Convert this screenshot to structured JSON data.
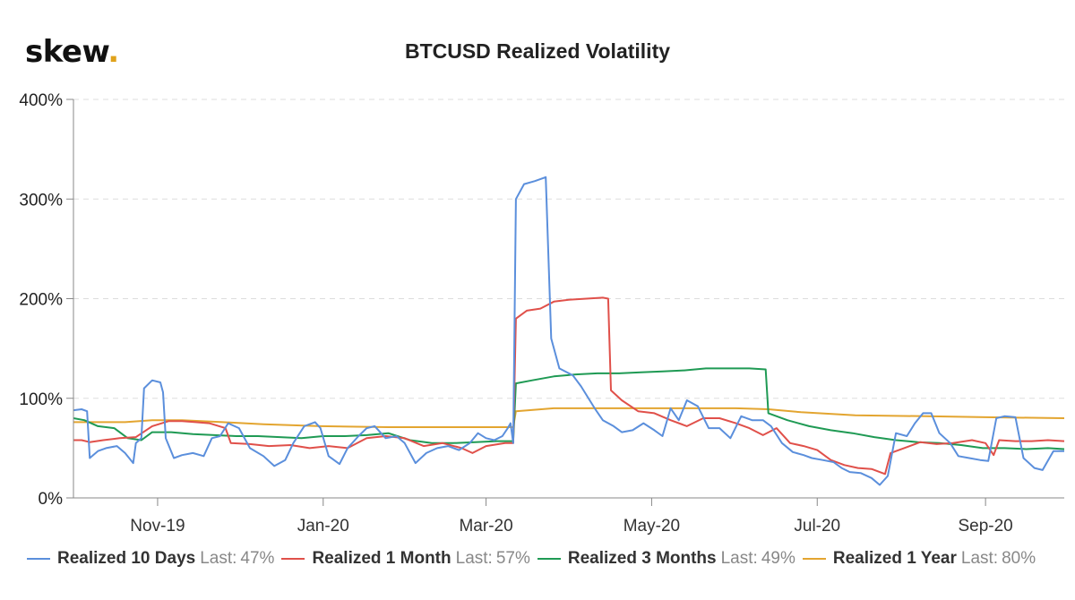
{
  "logo": {
    "text": "skew",
    "dot": "."
  },
  "chart_data": {
    "type": "line",
    "title": "BTCUSD Realized Volatility",
    "xlabel": "",
    "ylabel": "",
    "x_range": [
      "2019-10-01",
      "2020-09-30"
    ],
    "ylim": [
      0,
      400
    ],
    "y_ticks": [
      0,
      100,
      200,
      300,
      400
    ],
    "y_tick_labels": [
      "0%",
      "100%",
      "200%",
      "300%",
      "400%"
    ],
    "x_ticks": [
      "2019-11-01",
      "2020-01-01",
      "2020-03-01",
      "2020-05-01",
      "2020-07-01",
      "2020-09-01"
    ],
    "x_tick_labels": [
      "Nov-19",
      "Jan-20",
      "Mar-20",
      "May-20",
      "Jul-20",
      "Sep-20"
    ],
    "grid": "horizontal dashed",
    "legend_position": "bottom",
    "last_label": "Last:",
    "series": [
      {
        "name": "Realized 10 Days",
        "last": "47%",
        "color": "#5b8fdc",
        "points": [
          [
            "2019-10-01",
            88
          ],
          [
            "2019-10-04",
            89
          ],
          [
            "2019-10-06",
            87
          ],
          [
            "2019-10-07",
            40
          ],
          [
            "2019-10-10",
            47
          ],
          [
            "2019-10-13",
            50
          ],
          [
            "2019-10-17",
            52
          ],
          [
            "2019-10-20",
            45
          ],
          [
            "2019-10-23",
            35
          ],
          [
            "2019-10-24",
            55
          ],
          [
            "2019-10-26",
            60
          ],
          [
            "2019-10-27",
            110
          ],
          [
            "2019-10-30",
            118
          ],
          [
            "2019-11-02",
            116
          ],
          [
            "2019-11-03",
            106
          ],
          [
            "2019-11-04",
            60
          ],
          [
            "2019-11-07",
            40
          ],
          [
            "2019-11-10",
            43
          ],
          [
            "2019-11-14",
            45
          ],
          [
            "2019-11-18",
            42
          ],
          [
            "2019-11-21",
            60
          ],
          [
            "2019-11-24",
            62
          ],
          [
            "2019-11-27",
            75
          ],
          [
            "2019-12-01",
            70
          ],
          [
            "2019-12-05",
            50
          ],
          [
            "2019-12-10",
            42
          ],
          [
            "2019-12-14",
            32
          ],
          [
            "2019-12-18",
            38
          ],
          [
            "2019-12-21",
            55
          ],
          [
            "2019-12-25",
            72
          ],
          [
            "2019-12-29",
            76
          ],
          [
            "2019-12-31",
            70
          ],
          [
            "2020-01-03",
            42
          ],
          [
            "2020-01-07",
            34
          ],
          [
            "2020-01-10",
            50
          ],
          [
            "2020-01-14",
            62
          ],
          [
            "2020-01-17",
            70
          ],
          [
            "2020-01-20",
            72
          ],
          [
            "2020-01-24",
            60
          ],
          [
            "2020-01-28",
            62
          ],
          [
            "2020-01-31",
            55
          ],
          [
            "2020-02-04",
            35
          ],
          [
            "2020-02-08",
            45
          ],
          [
            "2020-02-12",
            50
          ],
          [
            "2020-02-16",
            52
          ],
          [
            "2020-02-20",
            48
          ],
          [
            "2020-02-24",
            55
          ],
          [
            "2020-02-27",
            65
          ],
          [
            "2020-03-01",
            60
          ],
          [
            "2020-03-04",
            58
          ],
          [
            "2020-03-07",
            62
          ],
          [
            "2020-03-09",
            70
          ],
          [
            "2020-03-10",
            75
          ],
          [
            "2020-03-11",
            55
          ],
          [
            "2020-03-12",
            300
          ],
          [
            "2020-03-15",
            315
          ],
          [
            "2020-03-19",
            318
          ],
          [
            "2020-03-22",
            321
          ],
          [
            "2020-03-23",
            322
          ],
          [
            "2020-03-25",
            160
          ],
          [
            "2020-03-28",
            130
          ],
          [
            "2020-04-02",
            123
          ],
          [
            "2020-04-05",
            112
          ],
          [
            "2020-04-10",
            90
          ],
          [
            "2020-04-13",
            78
          ],
          [
            "2020-04-17",
            72
          ],
          [
            "2020-04-20",
            66
          ],
          [
            "2020-04-24",
            68
          ],
          [
            "2020-04-28",
            75
          ],
          [
            "2020-05-02",
            68
          ],
          [
            "2020-05-05",
            62
          ],
          [
            "2020-05-08",
            90
          ],
          [
            "2020-05-11",
            78
          ],
          [
            "2020-05-14",
            98
          ],
          [
            "2020-05-18",
            92
          ],
          [
            "2020-05-22",
            70
          ],
          [
            "2020-05-26",
            70
          ],
          [
            "2020-05-30",
            60
          ],
          [
            "2020-06-03",
            82
          ],
          [
            "2020-06-07",
            78
          ],
          [
            "2020-06-11",
            78
          ],
          [
            "2020-06-14",
            72
          ],
          [
            "2020-06-18",
            55
          ],
          [
            "2020-06-22",
            46
          ],
          [
            "2020-06-26",
            43
          ],
          [
            "2020-06-29",
            40
          ],
          [
            "2020-07-03",
            38
          ],
          [
            "2020-07-07",
            36
          ],
          [
            "2020-07-10",
            30
          ],
          [
            "2020-07-13",
            26
          ],
          [
            "2020-07-17",
            25
          ],
          [
            "2020-07-21",
            20
          ],
          [
            "2020-07-24",
            13
          ],
          [
            "2020-07-27",
            22
          ],
          [
            "2020-07-30",
            65
          ],
          [
            "2020-08-03",
            62
          ],
          [
            "2020-08-06",
            75
          ],
          [
            "2020-08-09",
            85
          ],
          [
            "2020-08-12",
            85
          ],
          [
            "2020-08-15",
            65
          ],
          [
            "2020-08-19",
            55
          ],
          [
            "2020-08-22",
            42
          ],
          [
            "2020-08-26",
            40
          ],
          [
            "2020-08-30",
            38
          ],
          [
            "2020-09-02",
            37
          ],
          [
            "2020-09-05",
            80
          ],
          [
            "2020-09-08",
            82
          ],
          [
            "2020-09-12",
            81
          ],
          [
            "2020-09-15",
            40
          ],
          [
            "2020-09-19",
            30
          ],
          [
            "2020-09-22",
            28
          ],
          [
            "2020-09-26",
            47
          ],
          [
            "2020-09-30",
            47
          ]
        ]
      },
      {
        "name": "Realized 1 Month",
        "last": "57%",
        "color": "#e0504a",
        "points": [
          [
            "2019-10-01",
            58
          ],
          [
            "2019-10-04",
            58
          ],
          [
            "2019-10-07",
            56
          ],
          [
            "2019-10-12",
            58
          ],
          [
            "2019-10-18",
            60
          ],
          [
            "2019-10-24",
            61
          ],
          [
            "2019-10-30",
            72
          ],
          [
            "2019-11-05",
            77
          ],
          [
            "2019-11-10",
            77
          ],
          [
            "2019-11-15",
            76
          ],
          [
            "2019-11-20",
            75
          ],
          [
            "2019-11-26",
            70
          ],
          [
            "2019-11-28",
            55
          ],
          [
            "2019-12-05",
            54
          ],
          [
            "2019-12-12",
            52
          ],
          [
            "2019-12-20",
            53
          ],
          [
            "2019-12-27",
            50
          ],
          [
            "2020-01-03",
            52
          ],
          [
            "2020-01-10",
            50
          ],
          [
            "2020-01-17",
            60
          ],
          [
            "2020-01-24",
            62
          ],
          [
            "2020-01-31",
            60
          ],
          [
            "2020-02-07",
            52
          ],
          [
            "2020-02-14",
            55
          ],
          [
            "2020-02-21",
            50
          ],
          [
            "2020-02-25",
            45
          ],
          [
            "2020-03-01",
            52
          ],
          [
            "2020-03-08",
            55
          ],
          [
            "2020-03-11",
            55
          ],
          [
            "2020-03-12",
            180
          ],
          [
            "2020-03-16",
            188
          ],
          [
            "2020-03-21",
            190
          ],
          [
            "2020-03-26",
            197
          ],
          [
            "2020-04-01",
            199
          ],
          [
            "2020-04-07",
            200
          ],
          [
            "2020-04-13",
            201
          ],
          [
            "2020-04-15",
            200
          ],
          [
            "2020-04-16",
            108
          ],
          [
            "2020-04-20",
            98
          ],
          [
            "2020-04-26",
            87
          ],
          [
            "2020-05-02",
            85
          ],
          [
            "2020-05-08",
            78
          ],
          [
            "2020-05-14",
            72
          ],
          [
            "2020-05-20",
            80
          ],
          [
            "2020-05-26",
            80
          ],
          [
            "2020-06-01",
            75
          ],
          [
            "2020-06-06",
            70
          ],
          [
            "2020-06-11",
            63
          ],
          [
            "2020-06-16",
            70
          ],
          [
            "2020-06-21",
            55
          ],
          [
            "2020-06-26",
            52
          ],
          [
            "2020-07-01",
            48
          ],
          [
            "2020-07-06",
            38
          ],
          [
            "2020-07-11",
            33
          ],
          [
            "2020-07-16",
            30
          ],
          [
            "2020-07-21",
            29
          ],
          [
            "2020-07-26",
            24
          ],
          [
            "2020-07-28",
            45
          ],
          [
            "2020-08-02",
            50
          ],
          [
            "2020-08-08",
            56
          ],
          [
            "2020-08-14",
            54
          ],
          [
            "2020-08-20",
            55
          ],
          [
            "2020-08-27",
            58
          ],
          [
            "2020-09-01",
            55
          ],
          [
            "2020-09-04",
            43
          ],
          [
            "2020-09-06",
            58
          ],
          [
            "2020-09-12",
            57
          ],
          [
            "2020-09-18",
            57
          ],
          [
            "2020-09-24",
            58
          ],
          [
            "2020-09-30",
            57
          ]
        ]
      },
      {
        "name": "Realized 3 Months",
        "last": "49%",
        "color": "#1f9a54",
        "points": [
          [
            "2019-10-01",
            80
          ],
          [
            "2019-10-05",
            78
          ],
          [
            "2019-10-10",
            72
          ],
          [
            "2019-10-16",
            70
          ],
          [
            "2019-10-21",
            60
          ],
          [
            "2019-10-26",
            58
          ],
          [
            "2019-10-30",
            66
          ],
          [
            "2019-11-06",
            66
          ],
          [
            "2019-11-14",
            64
          ],
          [
            "2019-11-22",
            63
          ],
          [
            "2019-11-30",
            62
          ],
          [
            "2019-12-08",
            62
          ],
          [
            "2019-12-16",
            61
          ],
          [
            "2019-12-24",
            60
          ],
          [
            "2020-01-01",
            62
          ],
          [
            "2020-01-09",
            62
          ],
          [
            "2020-01-17",
            63
          ],
          [
            "2020-01-25",
            65
          ],
          [
            "2020-02-02",
            58
          ],
          [
            "2020-02-10",
            55
          ],
          [
            "2020-02-18",
            55
          ],
          [
            "2020-02-26",
            56
          ],
          [
            "2020-03-05",
            57
          ],
          [
            "2020-03-11",
            57
          ],
          [
            "2020-03-12",
            115
          ],
          [
            "2020-03-18",
            118
          ],
          [
            "2020-03-26",
            122
          ],
          [
            "2020-04-03",
            124
          ],
          [
            "2020-04-11",
            125
          ],
          [
            "2020-04-19",
            125
          ],
          [
            "2020-04-27",
            126
          ],
          [
            "2020-05-05",
            127
          ],
          [
            "2020-05-13",
            128
          ],
          [
            "2020-05-21",
            130
          ],
          [
            "2020-05-29",
            130
          ],
          [
            "2020-06-06",
            130
          ],
          [
            "2020-06-12",
            129
          ],
          [
            "2020-06-13",
            85
          ],
          [
            "2020-06-20",
            78
          ],
          [
            "2020-06-28",
            72
          ],
          [
            "2020-07-06",
            68
          ],
          [
            "2020-07-14",
            65
          ],
          [
            "2020-07-22",
            61
          ],
          [
            "2020-07-30",
            58
          ],
          [
            "2020-08-07",
            56
          ],
          [
            "2020-08-15",
            55
          ],
          [
            "2020-08-23",
            53
          ],
          [
            "2020-08-31",
            50
          ],
          [
            "2020-09-08",
            50
          ],
          [
            "2020-09-16",
            49
          ],
          [
            "2020-09-24",
            50
          ],
          [
            "2020-09-30",
            49
          ]
        ]
      },
      {
        "name": "Realized 1 Year",
        "last": "80%",
        "color": "#e3a530",
        "points": [
          [
            "2019-10-01",
            76
          ],
          [
            "2019-10-20",
            76
          ],
          [
            "2019-10-30",
            78
          ],
          [
            "2019-11-10",
            78
          ],
          [
            "2019-11-25",
            76
          ],
          [
            "2019-12-10",
            74
          ],
          [
            "2019-12-31",
            72
          ],
          [
            "2020-01-25",
            71
          ],
          [
            "2020-02-20",
            71
          ],
          [
            "2020-03-11",
            71
          ],
          [
            "2020-03-12",
            87
          ],
          [
            "2020-03-26",
            90
          ],
          [
            "2020-04-10",
            90
          ],
          [
            "2020-05-05",
            90
          ],
          [
            "2020-06-01",
            90
          ],
          [
            "2020-06-13",
            89
          ],
          [
            "2020-06-25",
            86
          ],
          [
            "2020-07-15",
            83
          ],
          [
            "2020-08-10",
            82
          ],
          [
            "2020-09-01",
            81
          ],
          [
            "2020-09-30",
            80
          ]
        ]
      }
    ]
  }
}
